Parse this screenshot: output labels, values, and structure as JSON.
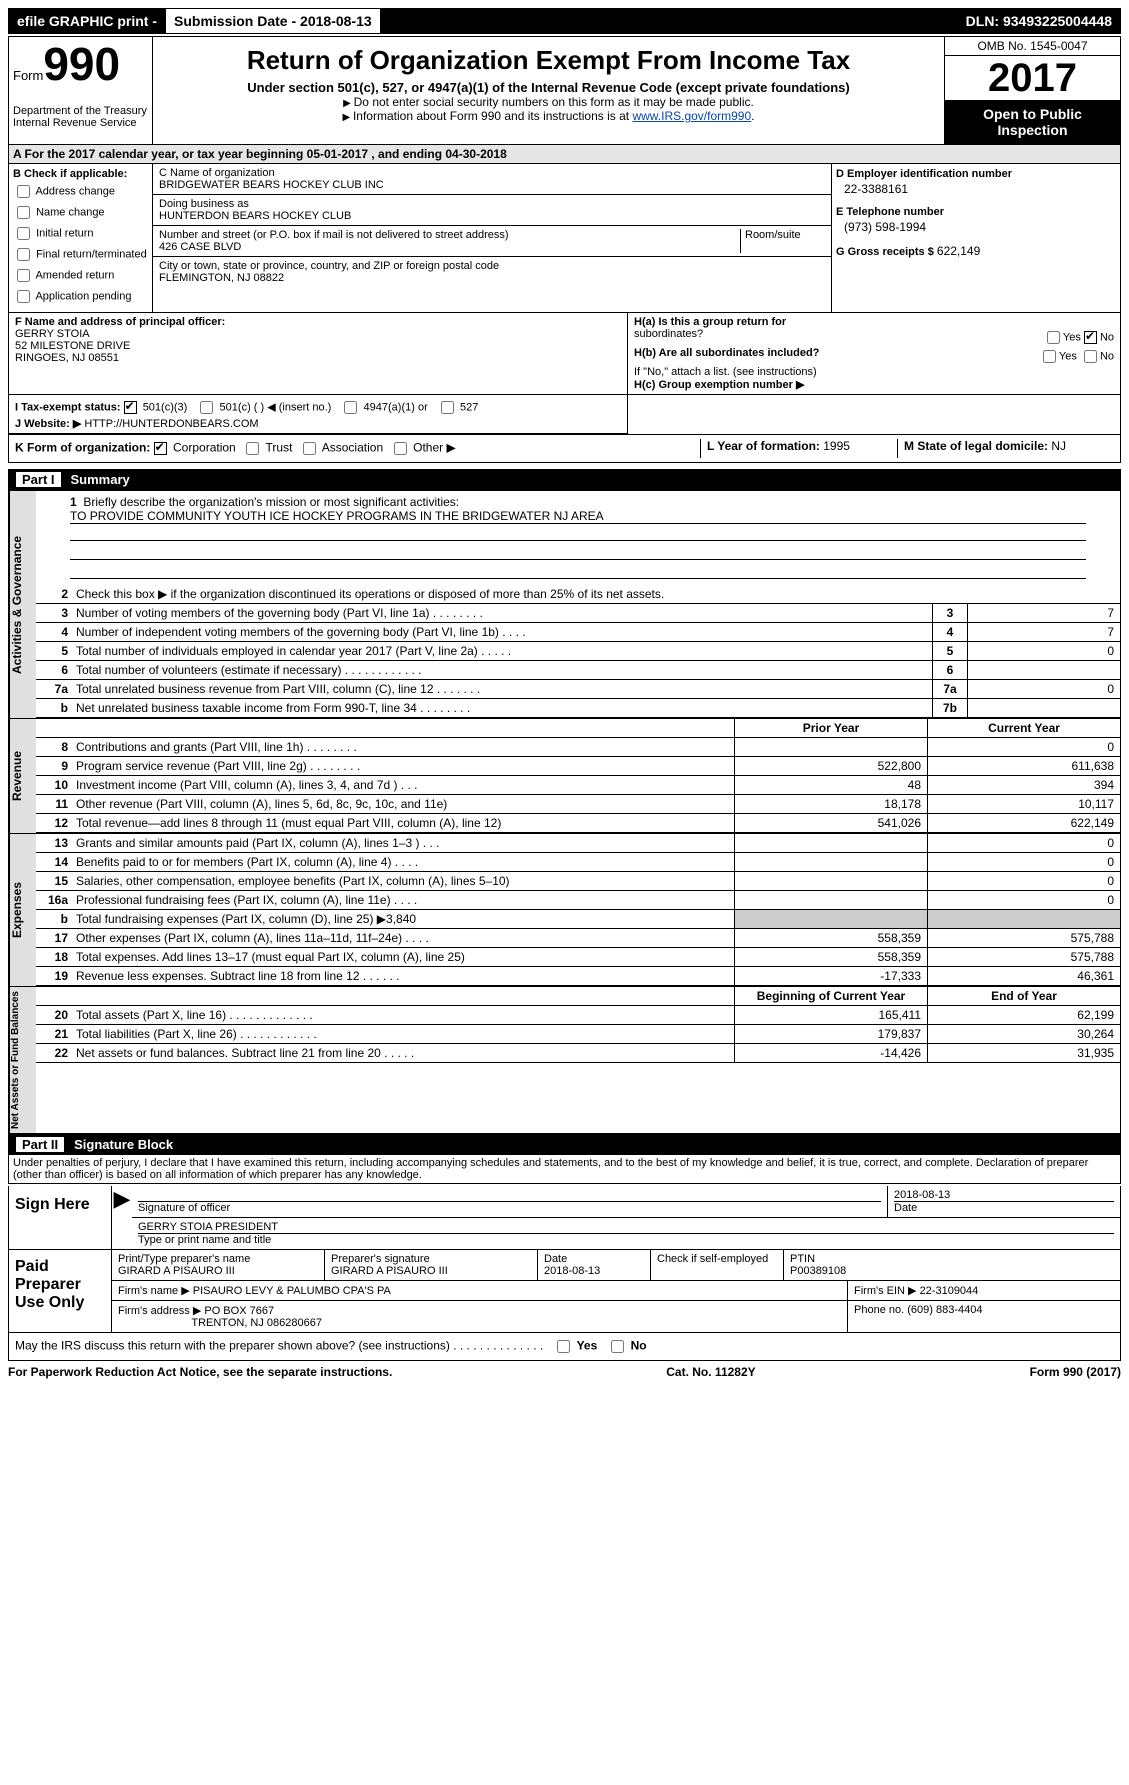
{
  "topbar": {
    "efile": "efile GRAPHIC print -",
    "submission_label": "Submission Date - ",
    "submission_date": "2018-08-13",
    "dln_label": "DLN: ",
    "dln": "93493225004448"
  },
  "header": {
    "form_word": "Form",
    "form_num": "990",
    "dept": "Department of the Treasury",
    "irs": "Internal Revenue Service",
    "title": "Return of Organization Exempt From Income Tax",
    "subtitle": "Under section 501(c), 527, or 4947(a)(1) of the Internal Revenue Code (except private foundations)",
    "note1": "Do not enter social security numbers on this form as it may be made public.",
    "note2_prefix": "Information about Form 990 and its instructions is at ",
    "note2_link": "www.IRS.gov/form990",
    "omb": "OMB No. 1545-0047",
    "year": "2017",
    "inspection": "Open to Public Inspection"
  },
  "sectionA": "A  For the 2017 calendar year, or tax year beginning 05-01-2017   , and ending 04-30-2018",
  "sectionB": {
    "title": "B Check if applicable:",
    "items": [
      "Address change",
      "Name change",
      "Initial return",
      "Final return/terminated",
      "Amended return",
      "Application pending"
    ]
  },
  "sectionC": {
    "name_lbl": "C Name of organization",
    "name": "BRIDGEWATER BEARS HOCKEY CLUB INC",
    "dba_lbl": "Doing business as",
    "dba": "HUNTERDON BEARS HOCKEY CLUB",
    "addr_lbl": "Number and street (or P.O. box if mail is not delivered to street address)",
    "room_lbl": "Room/suite",
    "addr": "426 CASE BLVD",
    "city_lbl": "City or town, state or province, country, and ZIP or foreign postal code",
    "city": "FLEMINGTON, NJ  08822"
  },
  "sectionD": {
    "ein_lbl": "D Employer identification number",
    "ein": "22-3388161",
    "phone_lbl": "E Telephone number",
    "phone": "(973) 598-1994",
    "gross_lbl": "G Gross receipts $ ",
    "gross": "622,149"
  },
  "sectionF": {
    "lbl": "F  Name and address of principal officer:",
    "name": "GERRY STOIA",
    "addr1": "52 MILESTONE DRIVE",
    "addr2": "RINGOES, NJ  08551"
  },
  "sectionH": {
    "ha": "H(a)  Is this a group return for",
    "ha2": "subordinates?",
    "hb": "H(b)  Are all subordinates included?",
    "hb_note": "If \"No,\" attach a list. (see instructions)",
    "hc": "H(c)  Group exemption number ▶",
    "yes": "Yes",
    "no": "No"
  },
  "sectionI": {
    "lbl": "I  Tax-exempt status:",
    "opts": [
      "501(c)(3)",
      "501(c) (   ) ◀ (insert no.)",
      "4947(a)(1) or",
      "527"
    ]
  },
  "sectionJ": {
    "lbl": "J  Website: ▶",
    "val": " HTTP://HUNTERDONBEARS.COM"
  },
  "sectionK": {
    "lbl": "K Form of organization:",
    "opts": [
      "Corporation",
      "Trust",
      "Association",
      "Other ▶"
    ],
    "L_lbl": "L Year of formation: ",
    "L_val": "1995",
    "M_lbl": "M State of legal domicile: ",
    "M_val": "NJ"
  },
  "part1": {
    "tag": "Part I",
    "title": "Summary",
    "vtab1": "Activities & Governance",
    "vtab2": "Revenue",
    "vtab3": "Expenses",
    "vtab4": "Net Assets or Fund Balances",
    "l1_lbl": "Briefly describe the organization's mission or most significant activities:",
    "l1_val": "TO PROVIDE COMMUNITY YOUTH ICE HOCKEY PROGRAMS IN THE BRIDGEWATER NJ AREA",
    "l2": "Check this box ▶       if the organization discontinued its operations or disposed of more than 25% of its net assets.",
    "lines_gov": [
      {
        "n": "3",
        "t": "Number of voting members of the governing body (Part VI, line 1a)   .    .    .    .    .    .    .    .",
        "bn": "3",
        "v": "7"
      },
      {
        "n": "4",
        "t": "Number of independent voting members of the governing body (Part VI, line 1b)    .    .    .    .",
        "bn": "4",
        "v": "7"
      },
      {
        "n": "5",
        "t": "Total number of individuals employed in calendar year 2017 (Part V, line 2a)    .    .    .    .    .",
        "bn": "5",
        "v": "0"
      },
      {
        "n": "6",
        "t": "Total number of volunteers (estimate if necessary)    .    .    .    .    .    .    .    .    .    .    .    .",
        "bn": "6",
        "v": ""
      },
      {
        "n": "7a",
        "t": "Total unrelated business revenue from Part VIII, column (C), line 12    .    .    .    .    .    .    .",
        "bn": "7a",
        "v": "0"
      },
      {
        "n": "b",
        "t": "Net unrelated business taxable income from Form 990-T, line 34    .    .    .    .    .    .    .    .",
        "bn": "7b",
        "v": ""
      }
    ],
    "hdr_prior": "Prior Year",
    "hdr_curr": "Current Year",
    "lines_rev": [
      {
        "n": "8",
        "t": "Contributions and grants (Part VIII, line 1h)    .    .    .    .    .    .    .    .",
        "p": "",
        "c": "0"
      },
      {
        "n": "9",
        "t": "Program service revenue (Part VIII, line 2g)    .    .    .    .    .    .    .    .",
        "p": "522,800",
        "c": "611,638"
      },
      {
        "n": "10",
        "t": "Investment income (Part VIII, column (A), lines 3, 4, and 7d )    .    .    .",
        "p": "48",
        "c": "394"
      },
      {
        "n": "11",
        "t": "Other revenue (Part VIII, column (A), lines 5, 6d, 8c, 9c, 10c, and 11e)",
        "p": "18,178",
        "c": "10,117"
      },
      {
        "n": "12",
        "t": "Total revenue—add lines 8 through 11 (must equal Part VIII, column (A), line 12)",
        "p": "541,026",
        "c": "622,149"
      }
    ],
    "lines_exp": [
      {
        "n": "13",
        "t": "Grants and similar amounts paid (Part IX, column (A), lines 1–3 )    .    .    .",
        "p": "",
        "c": "0"
      },
      {
        "n": "14",
        "t": "Benefits paid to or for members (Part IX, column (A), line 4)    .    .    .    .",
        "p": "",
        "c": "0"
      },
      {
        "n": "15",
        "t": "Salaries, other compensation, employee benefits (Part IX, column (A), lines 5–10)",
        "p": "",
        "c": "0"
      },
      {
        "n": "16a",
        "t": "Professional fundraising fees (Part IX, column (A), line 11e)    .    .    .    .",
        "p": "",
        "c": "0"
      },
      {
        "n": "b",
        "t": "Total fundraising expenses (Part IX, column (D), line 25) ▶3,840",
        "p": "shade",
        "c": "shade"
      },
      {
        "n": "17",
        "t": "Other expenses (Part IX, column (A), lines 11a–11d, 11f–24e)    .    .    .    .",
        "p": "558,359",
        "c": "575,788"
      },
      {
        "n": "18",
        "t": "Total expenses. Add lines 13–17 (must equal Part IX, column (A), line 25)",
        "p": "558,359",
        "c": "575,788"
      },
      {
        "n": "19",
        "t": "Revenue less expenses. Subtract line 18 from line 12    .    .    .    .    .    .",
        "p": "-17,333",
        "c": "46,361"
      }
    ],
    "hdr_beg": "Beginning of Current Year",
    "hdr_end": "End of Year",
    "lines_net": [
      {
        "n": "20",
        "t": "Total assets (Part X, line 16)   .    .    .    .    .    .    .    .    .    .    .    .    .",
        "p": "165,411",
        "c": "62,199"
      },
      {
        "n": "21",
        "t": "Total liabilities (Part X, line 26)   .    .    .    .    .    .    .    .    .    .    .    .",
        "p": "179,837",
        "c": "30,264"
      },
      {
        "n": "22",
        "t": "Net assets or fund balances. Subtract line 21 from line 20 .    .    .    .    .",
        "p": "-14,426",
        "c": "31,935"
      }
    ]
  },
  "part2": {
    "tag": "Part II",
    "title": "Signature Block",
    "decl": "Under penalties of perjury, I declare that I have examined this return, including accompanying schedules and statements, and to the best of my knowledge and belief, it is true, correct, and complete. Declaration of preparer (other than officer) is based on all information of which preparer has any knowledge.",
    "sign_here": "Sign Here",
    "sig_lbl": "Signature of officer",
    "date_lbl": "Date",
    "sig_date": "2018-08-13",
    "name_title": "GERRY STOIA PRESIDENT",
    "name_lbl": "Type or print name and title",
    "paid_lbl": "Paid Preparer Use Only",
    "prep_name_lbl": "Print/Type preparer's name",
    "prep_name": "GIRARD A PISAURO III",
    "prep_sig_lbl": "Preparer's signature",
    "prep_sig": "GIRARD A PISAURO III",
    "prep_date_lbl": "Date",
    "prep_date": "2018-08-13",
    "self_emp": "Check        if self-employed",
    "ptin_lbl": "PTIN",
    "ptin": "P00389108",
    "firm_name_lbl": "Firm's name      ▶",
    "firm_name": "PISAURO LEVY & PALUMBO CPA'S PA",
    "firm_ein_lbl": "Firm's EIN ▶",
    "firm_ein": "22-3109044",
    "firm_addr_lbl": "Firm's address ▶",
    "firm_addr": "PO BOX 7667",
    "firm_city": "TRENTON, NJ  086280667",
    "firm_phone_lbl": "Phone no. ",
    "firm_phone": "(609) 883-4404",
    "discuss": "May the IRS discuss this return with the preparer shown above? (see instructions)    .    .    .    .    .    .    .    .    .    .    .    .    .    .",
    "yes": "Yes",
    "no": "No"
  },
  "footer": {
    "pra": "For Paperwork Reduction Act Notice, see the separate instructions.",
    "cat": "Cat. No. 11282Y",
    "form": "Form 990 (2017)"
  }
}
